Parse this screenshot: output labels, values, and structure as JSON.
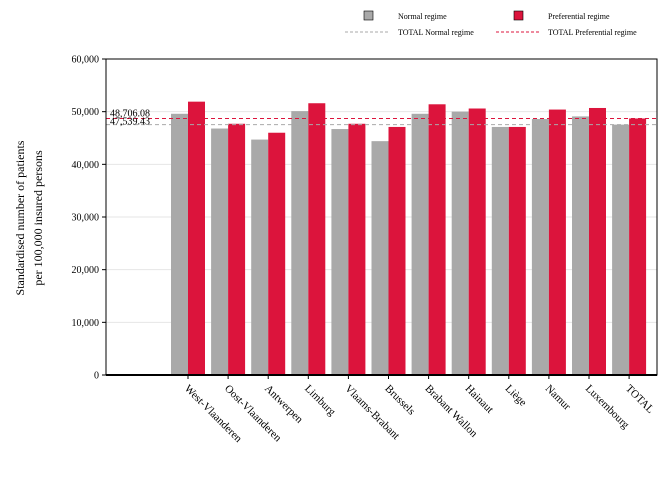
{
  "chart_data": {
    "type": "bar",
    "ylabel_lines": [
      "Standardised number of patients",
      "per 100,000 insured persons"
    ],
    "xlabel": "",
    "ylim": [
      0,
      60000
    ],
    "yticks": [
      0,
      10000,
      20000,
      30000,
      40000,
      50000,
      60000
    ],
    "ytick_labels": [
      "0",
      "10,000",
      "20,000",
      "30,000",
      "40,000",
      "50,000",
      "60,000"
    ],
    "categories": [
      "West-Vlaanderen",
      "Oost-Vlaanderen",
      "Antwerpen",
      "Limburg",
      "Vlaams-Brabant",
      "Brussels",
      "Brabant Wallon",
      "Hainaut",
      "Liège",
      "Namur",
      "Luxembourg",
      "TOTAL"
    ],
    "series": [
      {
        "name": "Normal regime",
        "color": "#a9a9a9",
        "values": [
          49600,
          46800,
          44700,
          50100,
          46700,
          44400,
          49600,
          50000,
          47100,
          48600,
          49100,
          47539
        ]
      },
      {
        "name": "Preferential regime",
        "color": "#dc143c",
        "values": [
          51900,
          47700,
          46000,
          51600,
          47700,
          47100,
          51400,
          50600,
          47100,
          50400,
          50700,
          48706
        ]
      }
    ],
    "reference_lines": [
      {
        "name": "TOTAL Normal regime",
        "value": 47539.43,
        "label": "47,539.43",
        "color": "#a9a9a9"
      },
      {
        "name": "TOTAL Preferential regime",
        "value": 48706.08,
        "label": "48,706.08",
        "color": "#dc143c"
      }
    ],
    "grid": true,
    "legend_position": "top-right"
  }
}
